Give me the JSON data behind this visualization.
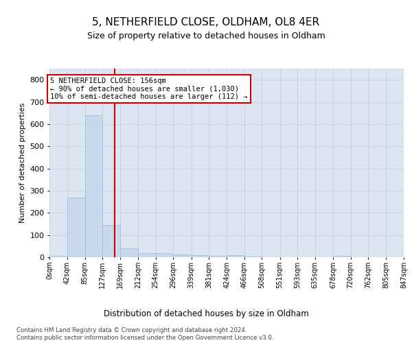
{
  "title": "5, NETHERFIELD CLOSE, OLDHAM, OL8 4ER",
  "subtitle": "Size of property relative to detached houses in Oldham",
  "xlabel": "Distribution of detached houses by size in Oldham",
  "ylabel": "Number of detached properties",
  "bin_edges": [
    0,
    42,
    85,
    127,
    169,
    212,
    254,
    296,
    339,
    381,
    424,
    466,
    508,
    551,
    593,
    635,
    678,
    720,
    762,
    805,
    847
  ],
  "bar_heights": [
    5,
    270,
    640,
    145,
    40,
    20,
    18,
    12,
    8,
    5,
    8,
    3,
    0,
    0,
    0,
    0,
    5,
    0,
    0,
    0
  ],
  "bar_color": "#c9d9ed",
  "bar_edge_color": "#a0b8d0",
  "property_size": 156,
  "vline_color": "#cc0000",
  "annotation_text": "5 NETHERFIELD CLOSE: 156sqm\n← 90% of detached houses are smaller (1,030)\n10% of semi-detached houses are larger (112) →",
  "annotation_box_color": "#ffffff",
  "annotation_box_edge": "#cc0000",
  "grid_color": "#c8d4e3",
  "background_color": "#dce6f1",
  "ylim": [
    0,
    850
  ],
  "yticks": [
    0,
    100,
    200,
    300,
    400,
    500,
    600,
    700,
    800
  ],
  "footer_line1": "Contains HM Land Registry data © Crown copyright and database right 2024.",
  "footer_line2": "Contains public sector information licensed under the Open Government Licence v3.0."
}
